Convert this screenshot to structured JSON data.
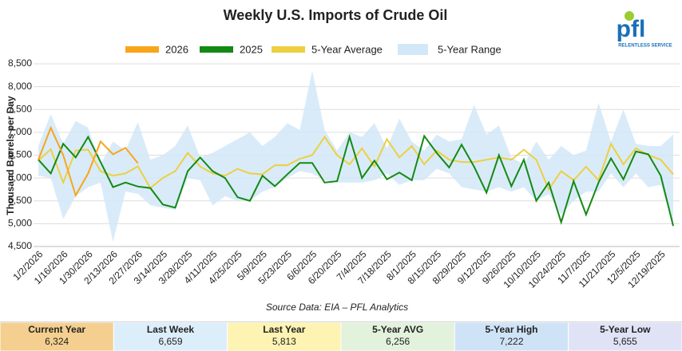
{
  "chart_data": {
    "type": "line",
    "title": "Weekly U.S. Imports of Crude Oil",
    "y_label": "Thousand Barrels per Day",
    "source": "Source Data: EIA – PFL Analytics",
    "logo": {
      "mark": "pfl",
      "tagline": "RELENTLESS SERVICE"
    },
    "categories": [
      "1/2/2026",
      null,
      "1/16/2026",
      null,
      "1/30/2026",
      null,
      "2/13/2026",
      null,
      "2/27/2026",
      null,
      "3/14/2025",
      null,
      "3/28/2025",
      null,
      "4/11/2025",
      null,
      "4/25/2025",
      null,
      "5/9/2025",
      null,
      "5/23/2025",
      null,
      "6/6/2025",
      null,
      "6/20/2025",
      null,
      "7/4/2025",
      null,
      "7/18/2025",
      null,
      "8/1/2025",
      null,
      "8/15/2025",
      null,
      "8/29/2025",
      null,
      "9/12/2025",
      null,
      "9/26/2025",
      null,
      "10/10/2025",
      null,
      "10/24/2025",
      null,
      "11/7/2025",
      null,
      "11/21/2025",
      null,
      "12/5/2025",
      null,
      "12/19/2025",
      null
    ],
    "range": {
      "name": "5-Year Range",
      "color": "#d2e8f8",
      "high": [
        6700,
        7400,
        6750,
        7250,
        7100,
        6300,
        6800,
        6600,
        7222,
        6400,
        6500,
        6700,
        7150,
        6450,
        6550,
        6700,
        6850,
        7000,
        6700,
        6900,
        7200,
        7050,
        8350,
        7050,
        6600,
        7000,
        6900,
        7200,
        6650,
        7300,
        6800,
        6600,
        6950,
        6800,
        6850,
        7600,
        6950,
        7150,
        6450,
        6300,
        6800,
        6400,
        6700,
        6500,
        6600,
        7650,
        6800,
        7500,
        6750,
        6700,
        6700,
        6950
      ],
      "low": [
        6050,
        6000,
        5100,
        5600,
        5800,
        5900,
        4600,
        5700,
        5655,
        5400,
        5350,
        5300,
        6000,
        5950,
        5400,
        5600,
        5500,
        5500,
        5700,
        5800,
        6000,
        6150,
        6100,
        5950,
        5900,
        5900,
        5900,
        5950,
        6100,
        5850,
        5950,
        5950,
        6200,
        6100,
        5800,
        5750,
        5700,
        5800,
        5700,
        5800,
        5500,
        5650,
        5200,
        5500,
        5700,
        5700,
        6100,
        5800,
        6100,
        5800,
        5850,
        5000
      ]
    },
    "series": [
      {
        "name": "2026",
        "color": "#f9a51b",
        "values": [
          6400,
          7100,
          6500,
          5620,
          6100,
          6800,
          6520,
          6659,
          6324,
          null,
          null,
          null,
          null,
          null,
          null,
          null,
          null,
          null,
          null,
          null,
          null,
          null,
          null,
          null,
          null,
          null,
          null,
          null,
          null,
          null,
          null,
          null,
          null,
          null,
          null,
          null,
          null,
          null,
          null,
          null,
          null,
          null,
          null,
          null,
          null,
          null,
          null,
          null,
          null,
          null,
          null,
          null
        ]
      },
      {
        "name": "2025",
        "color": "#138a13",
        "values": [
          6400,
          6100,
          6750,
          6450,
          6900,
          6350,
          5800,
          5900,
          5813,
          5780,
          5420,
          5350,
          6150,
          6450,
          6150,
          6000,
          5580,
          5500,
          6050,
          5820,
          6080,
          6330,
          6330,
          5900,
          5930,
          6900,
          6000,
          6380,
          5970,
          6120,
          5950,
          6920,
          6550,
          6230,
          6730,
          6250,
          5680,
          6500,
          5820,
          6400,
          5500,
          5900,
          5030,
          5930,
          5200,
          5900,
          6430,
          5970,
          6580,
          6520,
          6050,
          4950
        ]
      },
      {
        "name": "5-Year Average",
        "color": "#ecd040",
        "values": [
          6380,
          6630,
          5900,
          6600,
          6620,
          6150,
          6050,
          6100,
          6256,
          5780,
          6000,
          6150,
          6550,
          6250,
          6100,
          6050,
          6200,
          6100,
          6080,
          6280,
          6280,
          6420,
          6500,
          6900,
          6500,
          6300,
          6650,
          6250,
          6850,
          6450,
          6700,
          6300,
          6600,
          6400,
          6350,
          6350,
          6400,
          6450,
          6400,
          6620,
          6400,
          5750,
          6150,
          5950,
          6250,
          5950,
          6750,
          6300,
          6650,
          6500,
          6400,
          6080
        ]
      }
    ],
    "ylim": [
      4500,
      8500
    ],
    "yticks": [
      {
        "value": 4500,
        "label": "4,500"
      },
      {
        "value": 5000,
        "label": "5,000"
      },
      {
        "value": 5500,
        "label": "5,500"
      },
      {
        "value": 6000,
        "label": "6,000"
      },
      {
        "value": 6500,
        "label": "6,500"
      },
      {
        "value": 7000,
        "label": "7,000"
      },
      {
        "value": 7500,
        "label": "7,500"
      },
      {
        "value": 8000,
        "label": "8,000"
      },
      {
        "value": 8500,
        "label": "8,500"
      }
    ],
    "grid": true,
    "summary": [
      {
        "label": "Current Year",
        "value": 6324,
        "value_label": "6,324",
        "color": "#f4cf8f"
      },
      {
        "label": "Last Week",
        "value": 6659,
        "value_label": "6,659",
        "color": "#ddeefb"
      },
      {
        "label": "Last Year",
        "value": 5813,
        "value_label": "5,813",
        "color": "#fdf3b3"
      },
      {
        "label": "5-Year AVG",
        "value": 6256,
        "value_label": "6,256",
        "color": "#e2f2dc"
      },
      {
        "label": "5-Year High",
        "value": 7222,
        "value_label": "7,222",
        "color": "#cfe3f7"
      },
      {
        "label": "5-Year Low",
        "value": 5655,
        "value_label": "5,655",
        "color": "#e0e3f5"
      }
    ]
  }
}
